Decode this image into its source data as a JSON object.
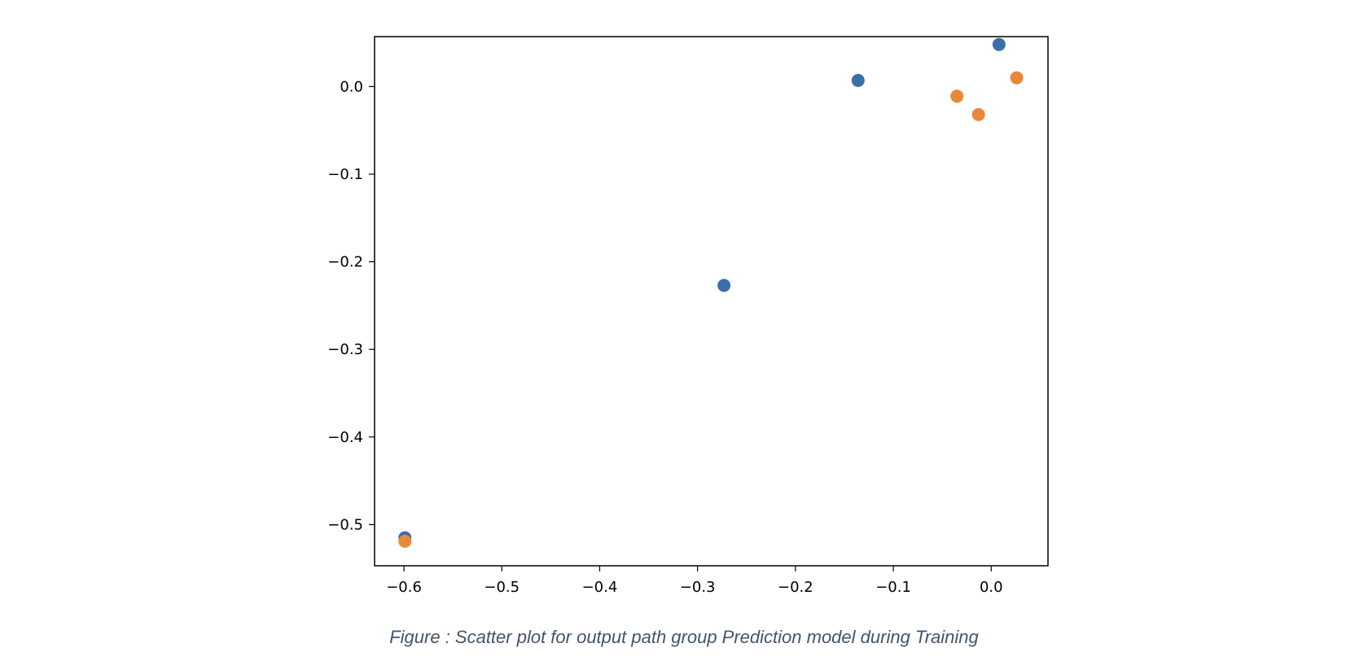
{
  "caption": "Figure : Scatter plot for output path group Prediction model during Training",
  "chart_data": {
    "type": "scatter",
    "xlim": [
      -0.63,
      0.058
    ],
    "ylim": [
      -0.547,
      0.057
    ],
    "x_ticks": [
      -0.6,
      -0.5,
      -0.4,
      -0.3,
      -0.2,
      -0.1,
      0.0
    ],
    "x_tick_labels": [
      "−0.6",
      "−0.5",
      "−0.4",
      "−0.3",
      "−0.2",
      "−0.1",
      "0.0"
    ],
    "y_ticks": [
      0.0,
      -0.1,
      -0.2,
      -0.3,
      -0.4,
      -0.5
    ],
    "y_tick_labels": [
      "0.0",
      "−0.1",
      "−0.2",
      "−0.3",
      "−0.4",
      "−0.5"
    ],
    "grid": false,
    "series": [
      {
        "color": "#3b6fa8",
        "points": [
          {
            "x": -0.599,
            "y": -0.515
          },
          {
            "x": -0.273,
            "y": -0.227
          },
          {
            "x": -0.136,
            "y": 0.007
          },
          {
            "x": 0.008,
            "y": 0.048
          }
        ]
      },
      {
        "color": "#e8883a",
        "points": [
          {
            "x": -0.599,
            "y": -0.519
          },
          {
            "x": -0.035,
            "y": -0.011
          },
          {
            "x": -0.013,
            "y": -0.032
          },
          {
            "x": 0.026,
            "y": 0.01
          }
        ]
      }
    ]
  }
}
